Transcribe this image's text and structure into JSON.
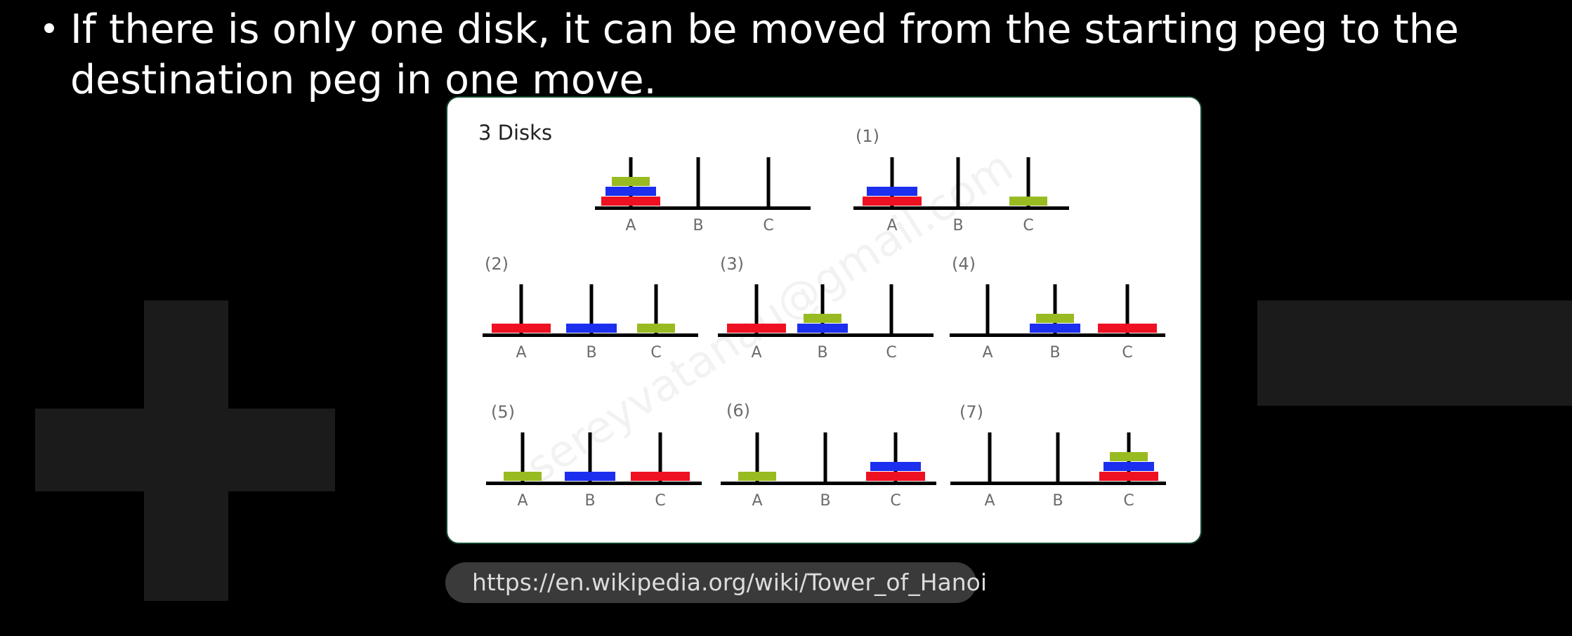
{
  "slide": {
    "bullet_glyph": "•",
    "bullet_text": "If there is only one disk, it can be moved from the starting peg to the destination peg in one move."
  },
  "diagram": {
    "title": "3 Disks",
    "watermark": "sereyvatanau@gmail.com",
    "disk_colors": {
      "1": "#99bb22",
      "2": "#1c2fee",
      "3": "#ee1122"
    },
    "states": [
      {
        "label": "",
        "pegs": {
          "A": [
            3,
            2,
            1
          ],
          "B": [],
          "C": []
        },
        "peg_labels": [
          "A",
          "B",
          "C"
        ]
      },
      {
        "label": "(1)",
        "pegs": {
          "A": [
            3,
            2
          ],
          "B": [],
          "C": [
            1
          ]
        },
        "peg_labels": [
          "A",
          "B",
          "C"
        ]
      },
      {
        "label": "(2)",
        "pegs": {
          "A": [
            3
          ],
          "B": [
            2
          ],
          "C": [
            1
          ]
        },
        "peg_labels": [
          "A",
          "B",
          "C"
        ]
      },
      {
        "label": "(3)",
        "pegs": {
          "A": [
            3
          ],
          "B": [
            2,
            1
          ],
          "C": []
        },
        "peg_labels": [
          "A",
          "B",
          "C"
        ]
      },
      {
        "label": "(4)",
        "pegs": {
          "A": [],
          "B": [
            2,
            1
          ],
          "C": [
            3
          ]
        },
        "peg_labels": [
          "A",
          "B",
          "C"
        ]
      },
      {
        "label": "(5)",
        "pegs": {
          "A": [
            1
          ],
          "B": [
            2
          ],
          "C": [
            3
          ]
        },
        "peg_labels": [
          "A",
          "B",
          "C"
        ]
      },
      {
        "label": "(6)",
        "pegs": {
          "A": [
            1
          ],
          "B": [],
          "C": [
            3,
            2
          ]
        },
        "peg_labels": [
          "A",
          "B",
          "C"
        ]
      },
      {
        "label": "(7)",
        "pegs": {
          "A": [],
          "B": [],
          "C": [
            3,
            2,
            1
          ]
        },
        "peg_labels": [
          "A",
          "B",
          "C"
        ]
      }
    ]
  },
  "source_link": {
    "url": "https://en.wikipedia.org/wiki/Tower_of_Hanoi"
  }
}
